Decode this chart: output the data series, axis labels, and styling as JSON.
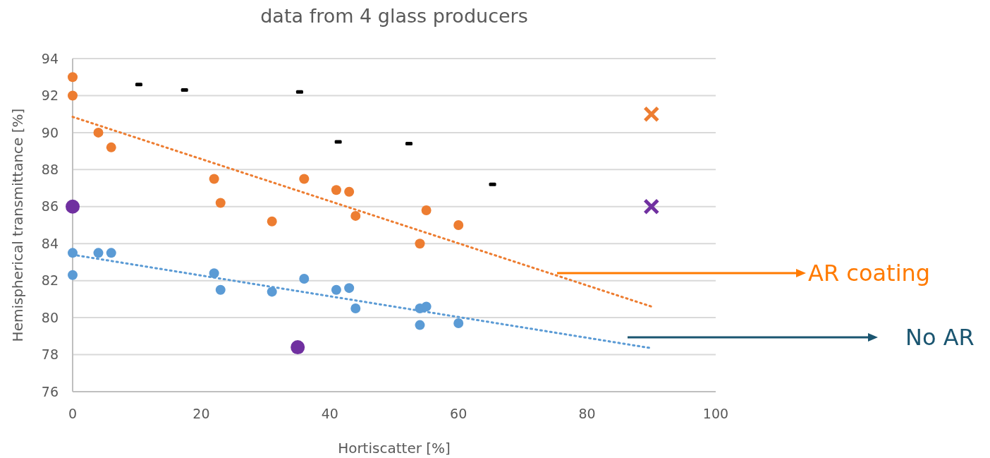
{
  "chart_data": {
    "type": "scatter",
    "title": "data from 4 glass producers",
    "xlabel": "Hortiscatter [%]",
    "ylabel": "Hemispherical transmittance [%]",
    "xlim": [
      0,
      100
    ],
    "xticks": [
      0,
      20,
      40,
      60,
      80,
      100
    ],
    "ylim": [
      76,
      94
    ],
    "yticks": [
      76,
      78,
      80,
      82,
      84,
      86,
      88,
      90,
      92,
      94
    ],
    "grid": "y",
    "series": [
      {
        "marker": "circle",
        "color": "#ed7d31",
        "x": [
          0,
          0,
          4,
          6,
          22,
          23,
          31,
          36,
          41,
          43,
          44,
          54,
          55,
          60
        ],
        "values": [
          93,
          92,
          90,
          89.2,
          87.5,
          86.2,
          85.2,
          87.5,
          86.9,
          86.8,
          85.5,
          84,
          85.8,
          85
        ]
      },
      {
        "marker": "circle",
        "color": "#5b9bd5",
        "x": [
          0,
          0,
          4,
          6,
          22,
          23,
          31,
          36,
          41,
          43,
          44,
          54,
          54,
          55,
          60
        ],
        "values": [
          83.5,
          82.3,
          83.5,
          83.5,
          82.4,
          81.5,
          81.4,
          82.1,
          81.5,
          81.6,
          80.5,
          80.5,
          79.6,
          80.6,
          79.7
        ]
      },
      {
        "marker": "circle",
        "color": "#7030a0",
        "x": [
          0,
          35
        ],
        "values": [
          86,
          78.4
        ]
      },
      {
        "marker": "cross",
        "color": "#ed7d31",
        "x": [
          90
        ],
        "values": [
          91
        ]
      },
      {
        "marker": "cross",
        "color": "#7030a0",
        "x": [
          90
        ],
        "values": [
          86
        ]
      },
      {
        "marker": "square",
        "color": "#000000",
        "x": [
          10.3,
          17.4,
          35.3,
          41.3,
          52.3,
          65.3
        ],
        "values": [
          92.6,
          92.3,
          92.2,
          89.5,
          89.4,
          87.2
        ]
      },
      {
        "type": "line",
        "marker": "none",
        "line_style": "dotted",
        "color": "#ed7d31",
        "x": [
          0,
          90
        ],
        "values": [
          90.85,
          80.6
        ]
      },
      {
        "type": "line",
        "marker": "none",
        "line_style": "dotted",
        "color": "#5b9bd5",
        "x": [
          0,
          90
        ],
        "values": [
          83.4,
          78.35
        ]
      }
    ],
    "annotations": [
      "AR coating",
      "No AR"
    ]
  }
}
